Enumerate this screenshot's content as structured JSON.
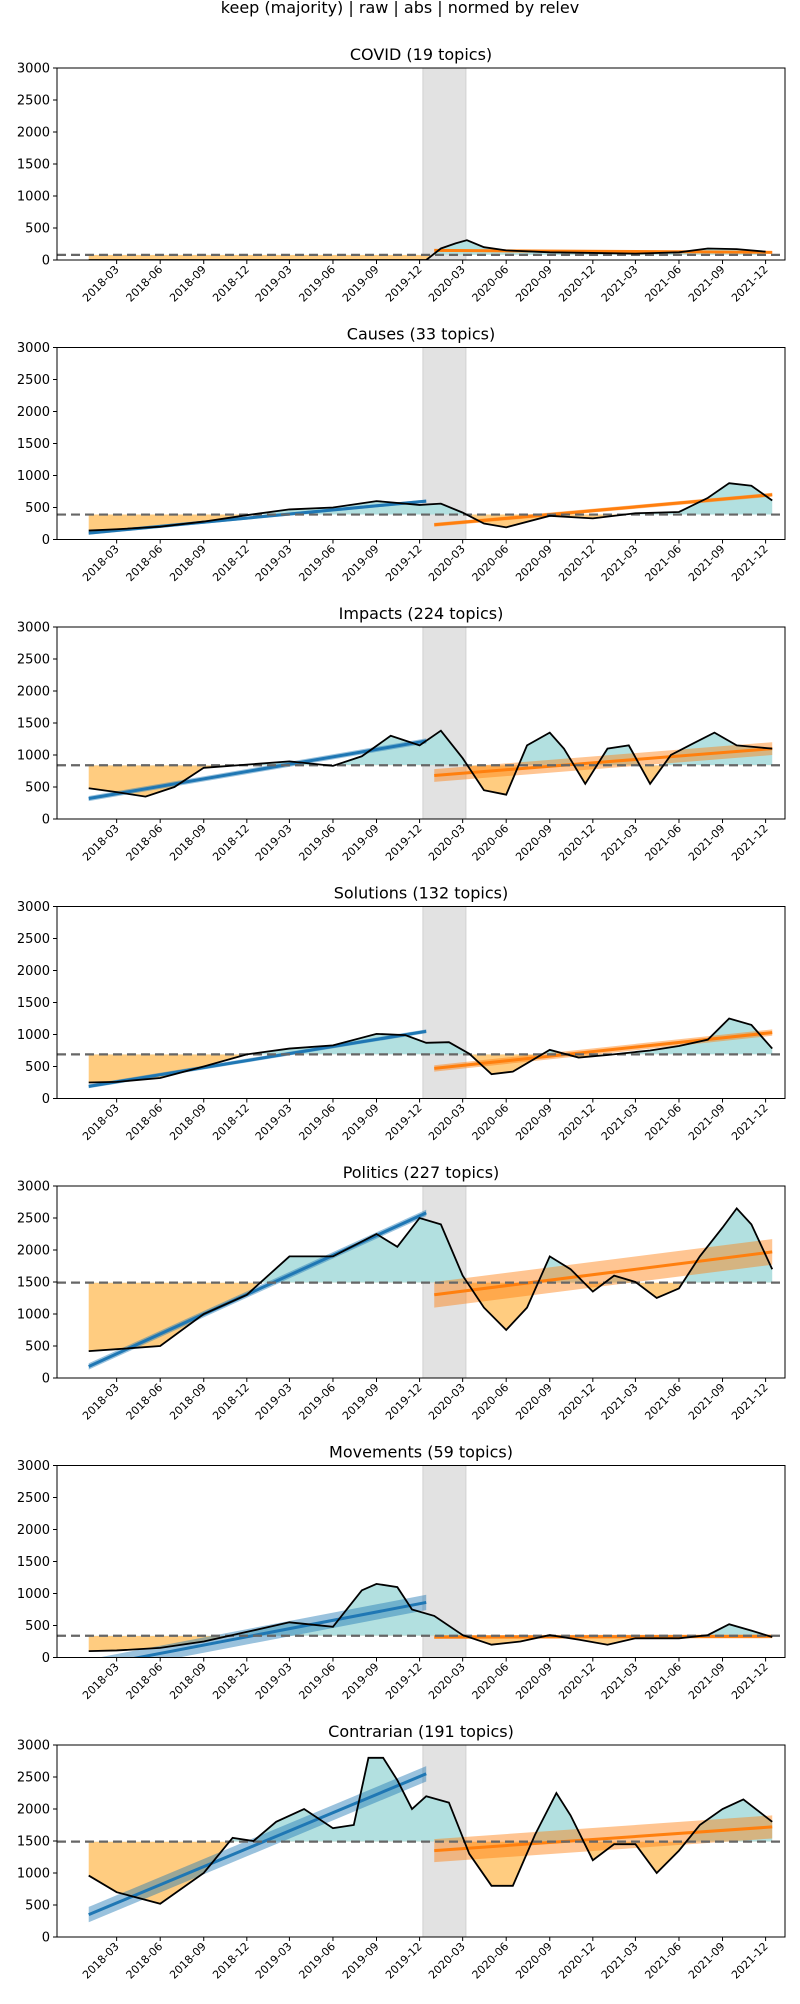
{
  "figure": {
    "suptitle": "keep (majority) | raw | abs | normed by relev"
  },
  "colors": {
    "pre_trend": "#1f77b4",
    "post_trend": "#ff7f0e",
    "below_fill": "#ffcc80",
    "above_fill": "#b2e0e0",
    "series_line": "#000000",
    "baseline": "#666666",
    "event_band": "#d3d3d3"
  },
  "chart_data": [
    {
      "type": "line",
      "title": "COVID (19 topics)",
      "ylim": [
        0,
        3000
      ],
      "yticks": [
        0,
        500,
        1000,
        1500,
        2000,
        2500,
        3000
      ],
      "xlim": [
        "2017-10-26",
        "2022-01-11"
      ],
      "xticks": [
        "2018-03",
        "2018-06",
        "2018-09",
        "2018-12",
        "2019-03",
        "2019-06",
        "2019-09",
        "2019-12",
        "2020-03",
        "2020-06",
        "2020-09",
        "2020-12",
        "2021-03",
        "2021-06",
        "2021-09",
        "2021-12"
      ],
      "shaded_band": [
        "2019-12-08",
        "2020-03-08"
      ],
      "baseline": 80,
      "series": {
        "x": [
          "2018-01-01",
          "2019-12-15",
          "2020-01-15",
          "2020-02-15",
          "2020-03-10",
          "2020-04-15",
          "2020-06-01",
          "2020-09-01",
          "2020-12-01",
          "2021-03-01",
          "2021-06-01",
          "2021-08-01",
          "2021-10-01",
          "2021-12-01"
        ],
        "y": [
          0,
          0,
          180,
          260,
          310,
          200,
          150,
          120,
          110,
          100,
          120,
          180,
          170,
          130
        ]
      },
      "pre_trend": null,
      "post_trend": {
        "x": [
          "2020-01-01",
          "2021-12-15"
        ],
        "y": [
          150,
          120
        ],
        "band": 15
      }
    },
    {
      "type": "line",
      "title": "Causes (33 topics)",
      "ylim": [
        0,
        3000
      ],
      "yticks": [
        0,
        500,
        1000,
        1500,
        2000,
        2500,
        3000
      ],
      "xlim": [
        "2017-10-26",
        "2022-01-11"
      ],
      "xticks": [
        "2018-03",
        "2018-06",
        "2018-09",
        "2018-12",
        "2019-03",
        "2019-06",
        "2019-09",
        "2019-12",
        "2020-03",
        "2020-06",
        "2020-09",
        "2020-12",
        "2021-03",
        "2021-06",
        "2021-09",
        "2021-12"
      ],
      "shaded_band": [
        "2019-12-08",
        "2020-03-08"
      ],
      "baseline": 390,
      "series": {
        "x": [
          "2018-01-01",
          "2018-03-01",
          "2018-06-01",
          "2018-09-01",
          "2018-12-01",
          "2019-03-01",
          "2019-06-01",
          "2019-09-01",
          "2019-12-01",
          "2020-01-15",
          "2020-03-01",
          "2020-04-15",
          "2020-06-01",
          "2020-09-01",
          "2020-12-01",
          "2021-03-01",
          "2021-06-01",
          "2021-08-01",
          "2021-09-15",
          "2021-11-01",
          "2021-12-15"
        ],
        "y": [
          140,
          160,
          200,
          280,
          380,
          470,
          500,
          600,
          540,
          560,
          420,
          250,
          190,
          370,
          330,
          410,
          430,
          650,
          880,
          840,
          610
        ]
      },
      "pre_trend": {
        "x": [
          "2018-01-01",
          "2019-12-15"
        ],
        "y": [
          100,
          600
        ],
        "band": 25
      },
      "post_trend": {
        "x": [
          "2020-01-01",
          "2021-12-15"
        ],
        "y": [
          230,
          700
        ],
        "band": 30
      }
    },
    {
      "type": "line",
      "title": "Impacts (224 topics)",
      "ylim": [
        0,
        3000
      ],
      "yticks": [
        0,
        500,
        1000,
        1500,
        2000,
        2500,
        3000
      ],
      "xlim": [
        "2017-10-26",
        "2022-01-11"
      ],
      "xticks": [
        "2018-03",
        "2018-06",
        "2018-09",
        "2018-12",
        "2019-03",
        "2019-06",
        "2019-09",
        "2019-12",
        "2020-03",
        "2020-06",
        "2020-09",
        "2020-12",
        "2021-03",
        "2021-06",
        "2021-09",
        "2021-12"
      ],
      "shaded_band": [
        "2019-12-08",
        "2020-03-08"
      ],
      "baseline": 840,
      "series": {
        "x": [
          "2018-01-01",
          "2018-03-01",
          "2018-05-01",
          "2018-07-01",
          "2018-09-01",
          "2018-12-01",
          "2019-03-01",
          "2019-06-01",
          "2019-08-01",
          "2019-10-01",
          "2019-12-01",
          "2020-01-15",
          "2020-03-01",
          "2020-04-15",
          "2020-06-01",
          "2020-07-15",
          "2020-09-01",
          "2020-10-01",
          "2020-11-15",
          "2021-01-01",
          "2021-02-15",
          "2021-04-01",
          "2021-05-15",
          "2021-07-01",
          "2021-08-15",
          "2021-10-01",
          "2021-12-15"
        ],
        "y": [
          480,
          420,
          350,
          500,
          800,
          850,
          900,
          830,
          980,
          1300,
          1150,
          1380,
          950,
          450,
          380,
          1150,
          1350,
          1100,
          550,
          1100,
          1150,
          550,
          1000,
          1180,
          1350,
          1150,
          1100
        ]
      },
      "pre_trend": {
        "x": [
          "2018-01-01",
          "2019-12-15"
        ],
        "y": [
          320,
          1220
        ],
        "band": 40
      },
      "post_trend": {
        "x": [
          "2020-01-01",
          "2021-12-15"
        ],
        "y": [
          680,
          1100
        ],
        "band": 100
      }
    },
    {
      "type": "line",
      "title": "Solutions (132 topics)",
      "ylim": [
        0,
        3000
      ],
      "yticks": [
        0,
        500,
        1000,
        1500,
        2000,
        2500,
        3000
      ],
      "xlim": [
        "2017-10-26",
        "2022-01-11"
      ],
      "xticks": [
        "2018-03",
        "2018-06",
        "2018-09",
        "2018-12",
        "2019-03",
        "2019-06",
        "2019-09",
        "2019-12",
        "2020-03",
        "2020-06",
        "2020-09",
        "2020-12",
        "2021-03",
        "2021-06",
        "2021-09",
        "2021-12"
      ],
      "shaded_band": [
        "2019-12-08",
        "2020-03-08"
      ],
      "baseline": 690,
      "series": {
        "x": [
          "2018-01-01",
          "2018-03-01",
          "2018-06-01",
          "2018-09-01",
          "2018-12-01",
          "2019-03-01",
          "2019-06-01",
          "2019-09-01",
          "2019-11-01",
          "2019-12-15",
          "2020-02-01",
          "2020-03-15",
          "2020-05-01",
          "2020-06-15",
          "2020-09-01",
          "2020-11-01",
          "2021-01-01",
          "2021-04-01",
          "2021-06-01",
          "2021-08-01",
          "2021-09-15",
          "2021-11-01",
          "2021-12-15"
        ],
        "y": [
          250,
          260,
          320,
          500,
          690,
          780,
          830,
          1010,
          990,
          870,
          880,
          700,
          380,
          420,
          760,
          640,
          680,
          750,
          820,
          920,
          1250,
          1150,
          780
        ]
      },
      "pre_trend": {
        "x": [
          "2018-01-01",
          "2019-12-15"
        ],
        "y": [
          190,
          1050
        ],
        "band": 30
      },
      "post_trend": {
        "x": [
          "2020-01-01",
          "2021-12-15"
        ],
        "y": [
          470,
          1030
        ],
        "band": 50
      }
    },
    {
      "type": "line",
      "title": "Politics (227 topics)",
      "ylim": [
        0,
        3000
      ],
      "yticks": [
        0,
        500,
        1000,
        1500,
        2000,
        2500,
        3000
      ],
      "xlim": [
        "2017-10-26",
        "2022-01-11"
      ],
      "xticks": [
        "2018-03",
        "2018-06",
        "2018-09",
        "2018-12",
        "2019-03",
        "2019-06",
        "2019-09",
        "2019-12",
        "2020-03",
        "2020-06",
        "2020-09",
        "2020-12",
        "2021-03",
        "2021-06",
        "2021-09",
        "2021-12"
      ],
      "shaded_band": [
        "2019-12-08",
        "2020-03-08"
      ],
      "baseline": 1490,
      "series": {
        "x": [
          "2018-01-01",
          "2018-03-01",
          "2018-06-01",
          "2018-09-01",
          "2018-12-01",
          "2019-03-01",
          "2019-06-01",
          "2019-09-01",
          "2019-10-15",
          "2019-12-01",
          "2020-01-15",
          "2020-03-01",
          "2020-04-15",
          "2020-06-01",
          "2020-07-15",
          "2020-09-01",
          "2020-10-15",
          "2020-12-01",
          "2021-01-15",
          "2021-03-01",
          "2021-04-15",
          "2021-06-01",
          "2021-07-15",
          "2021-09-01",
          "2021-10-01",
          "2021-11-01",
          "2021-12-15"
        ],
        "y": [
          420,
          450,
          500,
          1000,
          1300,
          1900,
          1900,
          2250,
          2050,
          2500,
          2400,
          1600,
          1100,
          750,
          1100,
          1900,
          1700,
          1350,
          1600,
          1500,
          1250,
          1400,
          1900,
          2350,
          2650,
          2400,
          1700
        ]
      },
      "pre_trend": {
        "x": [
          "2018-01-01",
          "2019-12-15"
        ],
        "y": [
          180,
          2580
        ],
        "band": 50
      },
      "post_trend": {
        "x": [
          "2020-01-01",
          "2021-12-15"
        ],
        "y": [
          1300,
          1970
        ],
        "band": 200
      }
    },
    {
      "type": "line",
      "title": "Movements (59 topics)",
      "ylim": [
        0,
        3000
      ],
      "yticks": [
        0,
        500,
        1000,
        1500,
        2000,
        2500,
        3000
      ],
      "xlim": [
        "2017-10-26",
        "2022-01-11"
      ],
      "xticks": [
        "2018-03",
        "2018-06",
        "2018-09",
        "2018-12",
        "2019-03",
        "2019-06",
        "2019-09",
        "2019-12",
        "2020-03",
        "2020-06",
        "2020-09",
        "2020-12",
        "2021-03",
        "2021-06",
        "2021-09",
        "2021-12"
      ],
      "shaded_band": [
        "2019-12-08",
        "2020-03-08"
      ],
      "baseline": 340,
      "series": {
        "x": [
          "2018-01-01",
          "2018-03-01",
          "2018-06-01",
          "2018-09-01",
          "2018-12-01",
          "2019-03-01",
          "2019-06-01",
          "2019-08-01",
          "2019-09-01",
          "2019-10-15",
          "2019-11-15",
          "2020-01-01",
          "2020-03-01",
          "2020-05-01",
          "2020-07-01",
          "2020-09-01",
          "2020-11-01",
          "2021-01-01",
          "2021-03-01",
          "2021-06-01",
          "2021-08-01",
          "2021-09-15",
          "2021-11-01",
          "2021-12-15"
        ],
        "y": [
          100,
          110,
          150,
          250,
          400,
          550,
          480,
          1050,
          1150,
          1100,
          750,
          650,
          350,
          200,
          250,
          350,
          280,
          200,
          300,
          300,
          350,
          520,
          420,
          320
        ]
      },
      "pre_trend": {
        "x": [
          "2018-01-01",
          "2019-12-15"
        ],
        "y": [
          -150,
          860
        ],
        "band": 120
      },
      "post_trend": {
        "x": [
          "2020-01-01",
          "2021-12-15"
        ],
        "y": [
          320,
          330
        ],
        "band": 30
      }
    },
    {
      "type": "line",
      "title": "Contrarian (191 topics)",
      "ylim": [
        0,
        3000
      ],
      "yticks": [
        0,
        500,
        1000,
        1500,
        2000,
        2500,
        3000
      ],
      "xlim": [
        "2017-10-26",
        "2022-01-11"
      ],
      "xticks": [
        "2018-03",
        "2018-06",
        "2018-09",
        "2018-12",
        "2019-03",
        "2019-06",
        "2019-09",
        "2019-12",
        "2020-03",
        "2020-06",
        "2020-09",
        "2020-12",
        "2021-03",
        "2021-06",
        "2021-09",
        "2021-12"
      ],
      "shaded_band": [
        "2019-12-08",
        "2020-03-08"
      ],
      "baseline": 1490,
      "series": {
        "x": [
          "2018-01-01",
          "2018-03-01",
          "2018-06-01",
          "2018-09-01",
          "2018-11-01",
          "2018-12-15",
          "2019-02-01",
          "2019-04-01",
          "2019-06-01",
          "2019-07-15",
          "2019-08-15",
          "2019-09-15",
          "2019-10-15",
          "2019-11-15",
          "2019-12-15",
          "2020-02-01",
          "2020-03-15",
          "2020-05-01",
          "2020-06-15",
          "2020-08-01",
          "2020-09-15",
          "2020-10-15",
          "2020-12-01",
          "2021-01-15",
          "2021-03-01",
          "2021-04-15",
          "2021-06-01",
          "2021-07-15",
          "2021-09-01",
          "2021-10-15",
          "2021-12-15"
        ],
        "y": [
          960,
          700,
          520,
          1000,
          1550,
          1500,
          1800,
          2000,
          1700,
          1750,
          2800,
          2800,
          2450,
          2000,
          2200,
          2100,
          1300,
          800,
          800,
          1600,
          2250,
          1900,
          1200,
          1450,
          1450,
          1000,
          1350,
          1750,
          2000,
          2150,
          1800
        ]
      },
      "pre_trend": {
        "x": [
          "2018-01-01",
          "2019-12-15"
        ],
        "y": [
          350,
          2550
        ],
        "band": 120
      },
      "post_trend": {
        "x": [
          "2020-01-01",
          "2021-12-15"
        ],
        "y": [
          1350,
          1720
        ],
        "band": 180
      }
    }
  ]
}
